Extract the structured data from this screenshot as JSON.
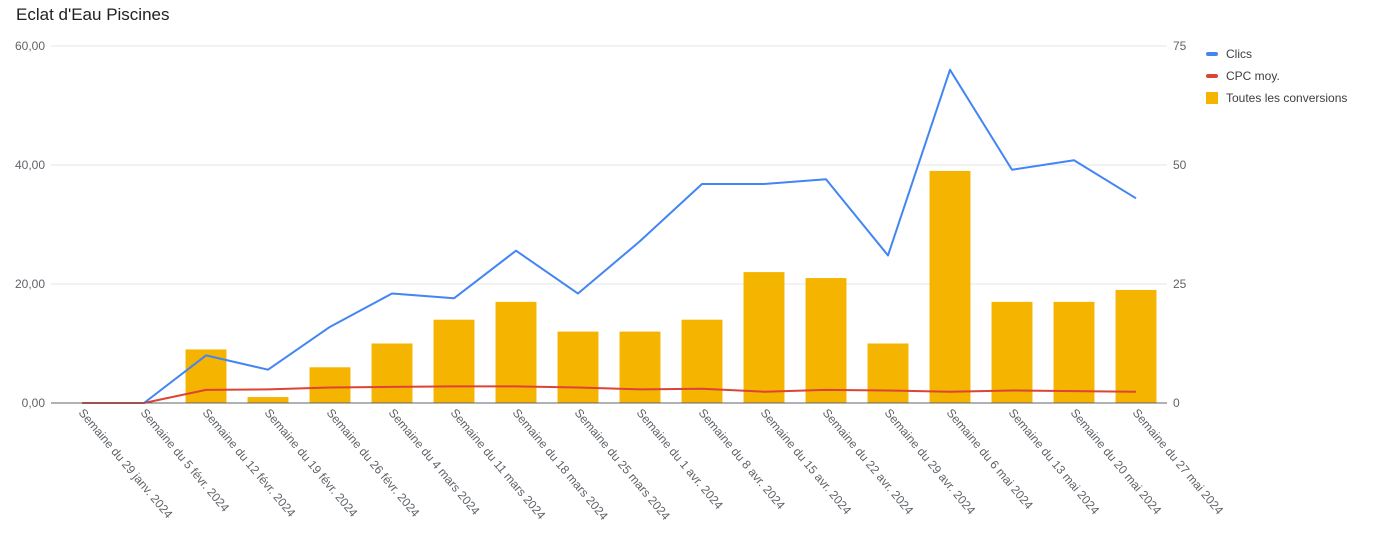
{
  "chart_data": {
    "type": "combo",
    "title": "Eclat d'Eau Piscines",
    "categories": [
      "Semaine du 29 janv. 2024",
      "Semaine du 5 févr. 2024",
      "Semaine du 12 févr. 2024",
      "Semaine du 19 févr. 2024",
      "Semaine du 26 févr. 2024",
      "Semaine du 4 mars 2024",
      "Semaine du 11 mars 2024",
      "Semaine du 18 mars 2024",
      "Semaine du 25 mars 2024",
      "Semaine du 1 avr. 2024",
      "Semaine du 8 avr. 2024",
      "Semaine du 15 avr. 2024",
      "Semaine du 22 avr. 2024",
      "Semaine du 29 avr. 2024",
      "Semaine du 6 mai 2024",
      "Semaine du 13 mai 2024",
      "Semaine du 20 mai 2024",
      "Semaine du 27 mai 2024"
    ],
    "series": [
      {
        "name": "Clics",
        "type": "line",
        "axis": "y2",
        "color": "#4285f4",
        "values": [
          0,
          0,
          10,
          7,
          16,
          23,
          22,
          32,
          23,
          34,
          46,
          46,
          47,
          31,
          70,
          49,
          51,
          43
        ]
      },
      {
        "name": "CPC moy.",
        "type": "line",
        "color": "#db4437",
        "values": [
          0,
          0,
          2.2,
          2.3,
          2.6,
          2.7,
          2.8,
          2.8,
          2.6,
          2.3,
          2.4,
          1.9,
          2.2,
          2.1,
          1.9,
          2.1,
          2.0,
          1.9
        ]
      },
      {
        "name": "Toutes les conversions",
        "type": "bar",
        "color": "#f4b400",
        "values": [
          0,
          0,
          9,
          1,
          6,
          10,
          14,
          17,
          12,
          12,
          14,
          22,
          21,
          10,
          39,
          17,
          17,
          19
        ]
      }
    ],
    "ylim": [
      0,
      60
    ],
    "yticks": [
      {
        "value": 0,
        "label": "0,00"
      },
      {
        "value": 20,
        "label": "20,00"
      },
      {
        "value": 40,
        "label": "40,00"
      },
      {
        "value": 60,
        "label": "60,00"
      }
    ],
    "y2lim": [
      0,
      75
    ],
    "y2ticks": [
      0,
      25,
      50,
      75
    ],
    "grid": true,
    "legend": "right"
  }
}
